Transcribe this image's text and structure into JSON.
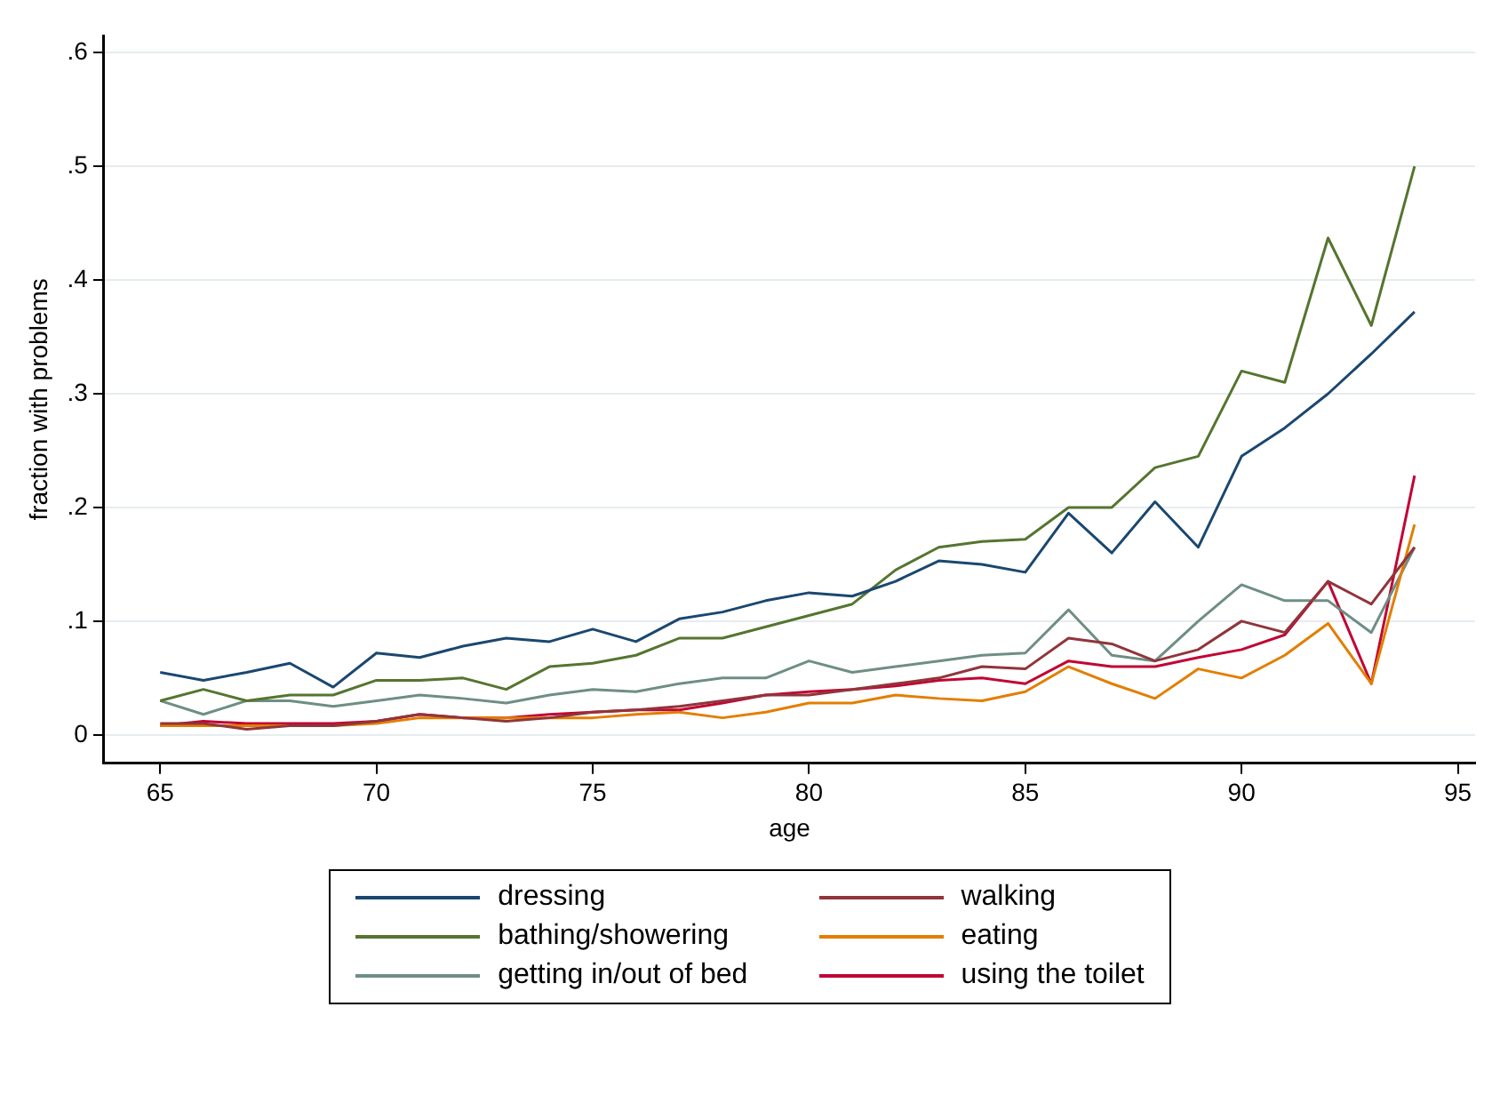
{
  "chart_data": {
    "type": "line",
    "xlabel": "age",
    "ylabel": "fraction with problems",
    "x": [
      65,
      66,
      67,
      68,
      69,
      70,
      71,
      72,
      73,
      74,
      75,
      76,
      77,
      78,
      79,
      80,
      81,
      82,
      83,
      84,
      85,
      86,
      87,
      88,
      89,
      90,
      91,
      92,
      93,
      94
    ],
    "xlim": [
      63.7,
      95.4
    ],
    "xticks": [
      65,
      70,
      75,
      80,
      85,
      90,
      95
    ],
    "ylim": [
      -0.025,
      0.615
    ],
    "yticks": [
      0,
      {
        "value": 0.1,
        "label": ".1"
      },
      {
        "value": 0.2,
        "label": ".2"
      },
      {
        "value": 0.3,
        "label": ".3"
      },
      {
        "value": 0.4,
        "label": ".4"
      },
      {
        "value": 0.5,
        "label": ".5"
      },
      {
        "value": 0.6,
        "label": ".6"
      }
    ],
    "grid": "y",
    "legend": "bottom",
    "marker": "none",
    "line_style": "solid",
    "series": [
      {
        "name": "dressing",
        "color": "#1a476f",
        "values": [
          0.055,
          0.048,
          0.055,
          0.063,
          0.042,
          0.072,
          0.068,
          0.078,
          0.085,
          0.082,
          0.093,
          0.082,
          0.102,
          0.108,
          0.118,
          0.125,
          0.122,
          0.135,
          0.153,
          0.15,
          0.143,
          0.195,
          0.16,
          0.205,
          0.165,
          0.245,
          0.27,
          0.3,
          0.335,
          0.372
        ]
      },
      {
        "name": "walking",
        "color": "#90353b",
        "values": [
          0.01,
          0.01,
          0.005,
          0.008,
          0.008,
          0.012,
          0.018,
          0.015,
          0.012,
          0.015,
          0.02,
          0.022,
          0.025,
          0.03,
          0.035,
          0.035,
          0.04,
          0.045,
          0.05,
          0.06,
          0.058,
          0.085,
          0.08,
          0.065,
          0.075,
          0.1,
          0.09,
          0.135,
          0.115,
          0.165
        ]
      },
      {
        "name": "bathing/showering",
        "color": "#55752f",
        "values": [
          0.03,
          0.04,
          0.03,
          0.035,
          0.035,
          0.048,
          0.048,
          0.05,
          0.04,
          0.06,
          0.063,
          0.07,
          0.085,
          0.085,
          0.095,
          0.105,
          0.115,
          0.145,
          0.165,
          0.17,
          0.172,
          0.2,
          0.2,
          0.235,
          0.245,
          0.32,
          0.31,
          0.437,
          0.36,
          0.5
        ]
      },
      {
        "name": "eating",
        "color": "#e37e00",
        "values": [
          0.008,
          0.008,
          0.008,
          0.008,
          0.008,
          0.01,
          0.015,
          0.015,
          0.015,
          0.015,
          0.015,
          0.018,
          0.02,
          0.015,
          0.02,
          0.028,
          0.028,
          0.035,
          0.032,
          0.03,
          0.038,
          0.06,
          0.045,
          0.032,
          0.058,
          0.05,
          0.07,
          0.098,
          0.045,
          0.185
        ]
      },
      {
        "name": "getting in/out of bed",
        "color": "#6e8e84",
        "values": [
          0.03,
          0.018,
          0.03,
          0.03,
          0.025,
          0.03,
          0.035,
          0.032,
          0.028,
          0.035,
          0.04,
          0.038,
          0.045,
          0.05,
          0.05,
          0.065,
          0.055,
          0.06,
          0.065,
          0.07,
          0.072,
          0.11,
          0.07,
          0.065,
          0.1,
          0.132,
          0.118,
          0.118,
          0.09,
          0.165
        ]
      },
      {
        "name": "using the toilet",
        "color": "#c10534",
        "values": [
          0.008,
          0.012,
          0.01,
          0.01,
          0.01,
          0.012,
          0.018,
          0.015,
          0.015,
          0.018,
          0.02,
          0.022,
          0.022,
          0.028,
          0.035,
          0.038,
          0.04,
          0.043,
          0.048,
          0.05,
          0.045,
          0.065,
          0.06,
          0.06,
          0.068,
          0.075,
          0.088,
          0.135,
          0.045,
          0.228
        ]
      }
    ]
  }
}
